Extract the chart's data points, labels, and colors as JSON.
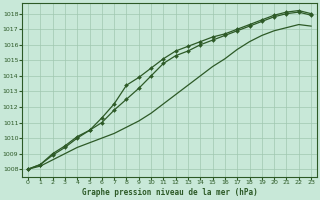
{
  "title": "Graphe pression niveau de la mer (hPa)",
  "background_color": "#c8e8d8",
  "plot_background": "#c8e8d8",
  "line_color": "#2d5a27",
  "marker_color": "#2d5a27",
  "grid_color": "#a0c8b0",
  "xlim": [
    -0.5,
    23.5
  ],
  "ylim": [
    1007.5,
    1018.7
  ],
  "yticks": [
    1008,
    1009,
    1010,
    1011,
    1012,
    1013,
    1014,
    1015,
    1016,
    1017,
    1018
  ],
  "xticks": [
    0,
    1,
    2,
    3,
    4,
    5,
    6,
    7,
    8,
    9,
    10,
    11,
    12,
    13,
    14,
    15,
    16,
    17,
    18,
    19,
    20,
    21,
    22,
    23
  ],
  "series1": [
    1008.0,
    1008.3,
    1008.9,
    1009.4,
    1010.0,
    1010.5,
    1011.3,
    1012.2,
    1013.4,
    1013.9,
    1014.5,
    1015.1,
    1015.6,
    1015.9,
    1016.2,
    1016.5,
    1016.7,
    1017.0,
    1017.3,
    1017.6,
    1017.9,
    1018.1,
    1018.2,
    1018.0
  ],
  "series2": [
    1008.0,
    1008.3,
    1009.0,
    1009.5,
    1010.1,
    1010.5,
    1011.0,
    1011.8,
    1012.5,
    1013.2,
    1014.0,
    1014.8,
    1015.3,
    1015.6,
    1016.0,
    1016.3,
    1016.6,
    1016.9,
    1017.2,
    1017.5,
    1017.8,
    1018.0,
    1018.1,
    1017.9
  ],
  "series3": [
    1008.0,
    1008.2,
    1008.6,
    1009.0,
    1009.4,
    1009.7,
    1010.0,
    1010.3,
    1010.7,
    1011.1,
    1011.6,
    1012.2,
    1012.8,
    1013.4,
    1014.0,
    1014.6,
    1015.1,
    1015.7,
    1016.2,
    1016.6,
    1016.9,
    1017.1,
    1017.3,
    1017.2
  ]
}
